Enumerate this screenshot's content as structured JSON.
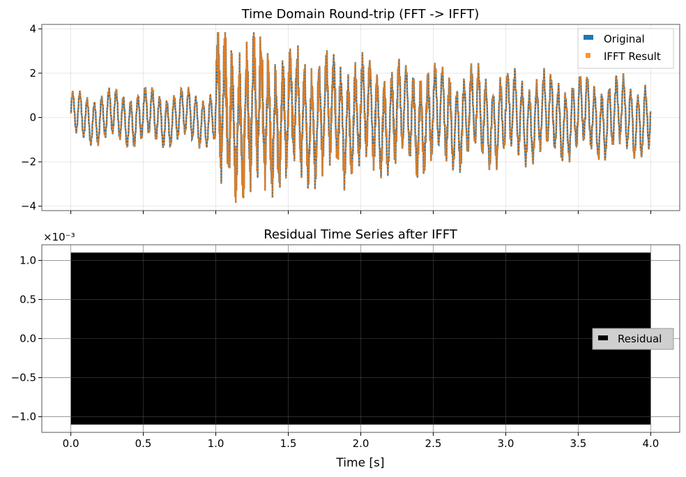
{
  "chart_data": [
    {
      "type": "line",
      "title": "Time Domain Round-trip (FFT -> IFFT)",
      "xlabel": "",
      "ylabel": "",
      "xlim": [
        -0.2,
        4.2
      ],
      "ylim": [
        -4.2,
        4.2
      ],
      "x_ticks": [
        0.0,
        0.5,
        1.0,
        1.5,
        2.0,
        2.5,
        3.0,
        3.5,
        4.0
      ],
      "y_ticks": [
        4,
        2,
        0,
        -2,
        -4
      ],
      "y_tick_labels": [
        "4",
        "2",
        "0",
        "−2",
        "−4"
      ],
      "grid": true,
      "legend_position": "upper-right",
      "x_range": [
        0.0,
        4.0
      ],
      "series": [
        {
          "name": "Original",
          "color": "#1f77b4",
          "style": "solid"
        },
        {
          "name": "IFFT Result",
          "color": "#ff7f0e",
          "style": "dotted"
        }
      ],
      "envelope": {
        "x": [
          0.0,
          0.25,
          0.5,
          0.75,
          0.99,
          1.0,
          1.1,
          1.25,
          1.5,
          2.0,
          2.5,
          3.0,
          3.5,
          4.0
        ],
        "amplitude": [
          1.3,
          1.45,
          1.55,
          1.5,
          1.5,
          3.9,
          3.4,
          3.6,
          3.0,
          2.8,
          2.6,
          2.3,
          2.1,
          2.0
        ]
      }
    },
    {
      "type": "area",
      "title": "Residual Time Series after IFFT",
      "xlabel": "Time [s]",
      "ylabel": "",
      "scale_label": "×10⁻³",
      "xlim": [
        -0.2,
        4.2
      ],
      "ylim": [
        -1.2,
        1.2
      ],
      "x_ticks": [
        0.0,
        0.5,
        1.0,
        1.5,
        2.0,
        2.5,
        3.0,
        3.5,
        4.0
      ],
      "x_tick_labels": [
        "0.0",
        "0.5",
        "1.0",
        "1.5",
        "2.0",
        "2.5",
        "3.0",
        "3.5",
        "4.0"
      ],
      "y_ticks": [
        1.0,
        0.5,
        0.0,
        -0.5,
        -1.0
      ],
      "y_tick_labels": [
        "1.0",
        "0.5",
        "0.0",
        "−0.5",
        "−1.0"
      ],
      "grid": true,
      "legend_position": "center-right",
      "series": [
        {
          "name": "Residual",
          "color": "#000000",
          "x_range": [
            0.0,
            4.0
          ],
          "y_range": [
            -1.1,
            1.1
          ]
        }
      ]
    }
  ]
}
